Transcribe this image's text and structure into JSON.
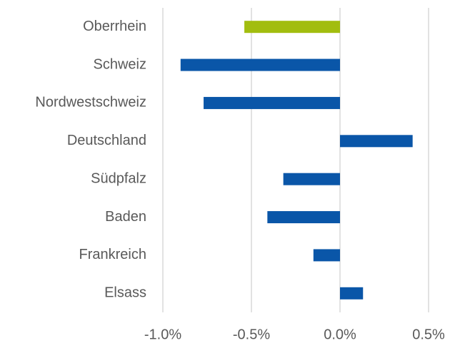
{
  "chart_data": {
    "type": "barh",
    "categories": [
      "Oberrhein",
      "Schweiz",
      "Nordwestschweiz",
      "Deutschland",
      "Südpfalz",
      "Baden",
      "Frankreich",
      "Elsass"
    ],
    "values": [
      -0.54,
      -0.9,
      -0.77,
      0.41,
      -0.32,
      -0.41,
      -0.15,
      0.13
    ],
    "colors": [
      "#a2bd0f",
      "#0a56a8",
      "#0a56a8",
      "#0a56a8",
      "#0a56a8",
      "#0a56a8",
      "#0a56a8",
      "#0a56a8"
    ],
    "xlim": [
      -1,
      0.5
    ],
    "xticks": [
      {
        "value": -1,
        "label": "-1.0%"
      },
      {
        "value": -0.5,
        "label": "-0.5%"
      },
      {
        "value": 0,
        "label": "0.0%"
      },
      {
        "value": 0.5,
        "label": "0.5%"
      }
    ],
    "grid": true
  }
}
